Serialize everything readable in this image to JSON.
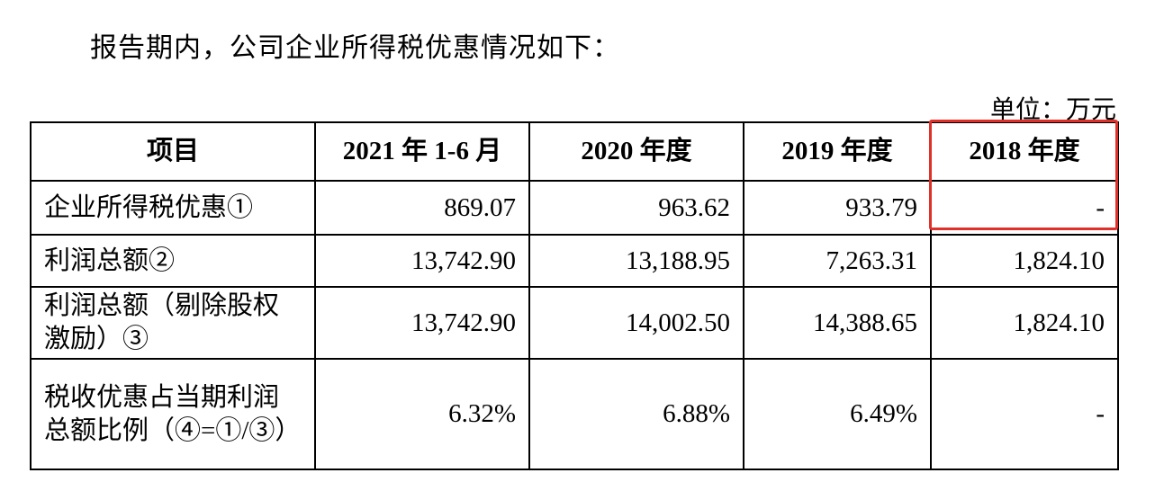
{
  "intro": "报告期内，公司企业所得税优惠情况如下：",
  "unit": "单位：万元",
  "table": {
    "columns": [
      "项目",
      "2021 年 1-6 月",
      "2020 年度",
      "2019 年度",
      "2018 年度"
    ],
    "rows": [
      [
        "企业所得税优惠①",
        "869.07",
        "963.62",
        "933.79",
        "-"
      ],
      [
        "利润总额②",
        "13,742.90",
        "13,188.95",
        "7,263.31",
        "1,824.10"
      ],
      [
        "利润总额（剔除股权激励）③",
        "13,742.90",
        "14,002.50",
        "14,388.65",
        "1,824.10"
      ],
      [
        "税收优惠占当期利润总额比例（④=①/③）",
        "6.32%",
        "6.88%",
        "6.49%",
        "-"
      ]
    ]
  }
}
